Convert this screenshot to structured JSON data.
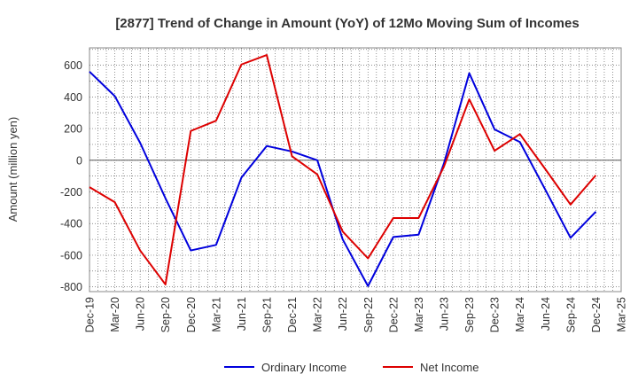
{
  "chart_data": {
    "type": "line",
    "title": "[2877]  Trend of Change in Amount (YoY) of 12Mo Moving Sum of Incomes",
    "ylabel": "Amount (million yen)",
    "xlabel": "",
    "ylim": [
      -830,
      710
    ],
    "yticks": [
      -800,
      -600,
      -400,
      -200,
      0,
      200,
      400,
      600
    ],
    "categories": [
      "Dec-19",
      "Mar-20",
      "Jun-20",
      "Sep-20",
      "Dec-20",
      "Mar-21",
      "Jun-21",
      "Sep-21",
      "Dec-21",
      "Mar-22",
      "Jun-22",
      "Sep-22",
      "Dec-22",
      "Mar-23",
      "Jun-23",
      "Sep-23",
      "Dec-23",
      "Mar-24",
      "Jun-24",
      "Sep-24",
      "Dec-24",
      "Mar-25"
    ],
    "grid": true,
    "legend_position": "bottom",
    "series": [
      {
        "name": "Ordinary Income",
        "color": "#0000dd",
        "values": [
          560,
          405,
          110,
          -240,
          -570,
          -535,
          -110,
          90,
          55,
          0,
          -500,
          -795,
          -485,
          -470,
          -20,
          550,
          195,
          115,
          -185,
          -490,
          -325,
          null
        ]
      },
      {
        "name": "Net Income",
        "color": "#dd0000",
        "values": [
          -170,
          -265,
          -570,
          -785,
          185,
          250,
          605,
          665,
          25,
          -90,
          -450,
          -620,
          -365,
          -365,
          -40,
          385,
          60,
          165,
          -55,
          -280,
          -95,
          null
        ]
      }
    ]
  }
}
